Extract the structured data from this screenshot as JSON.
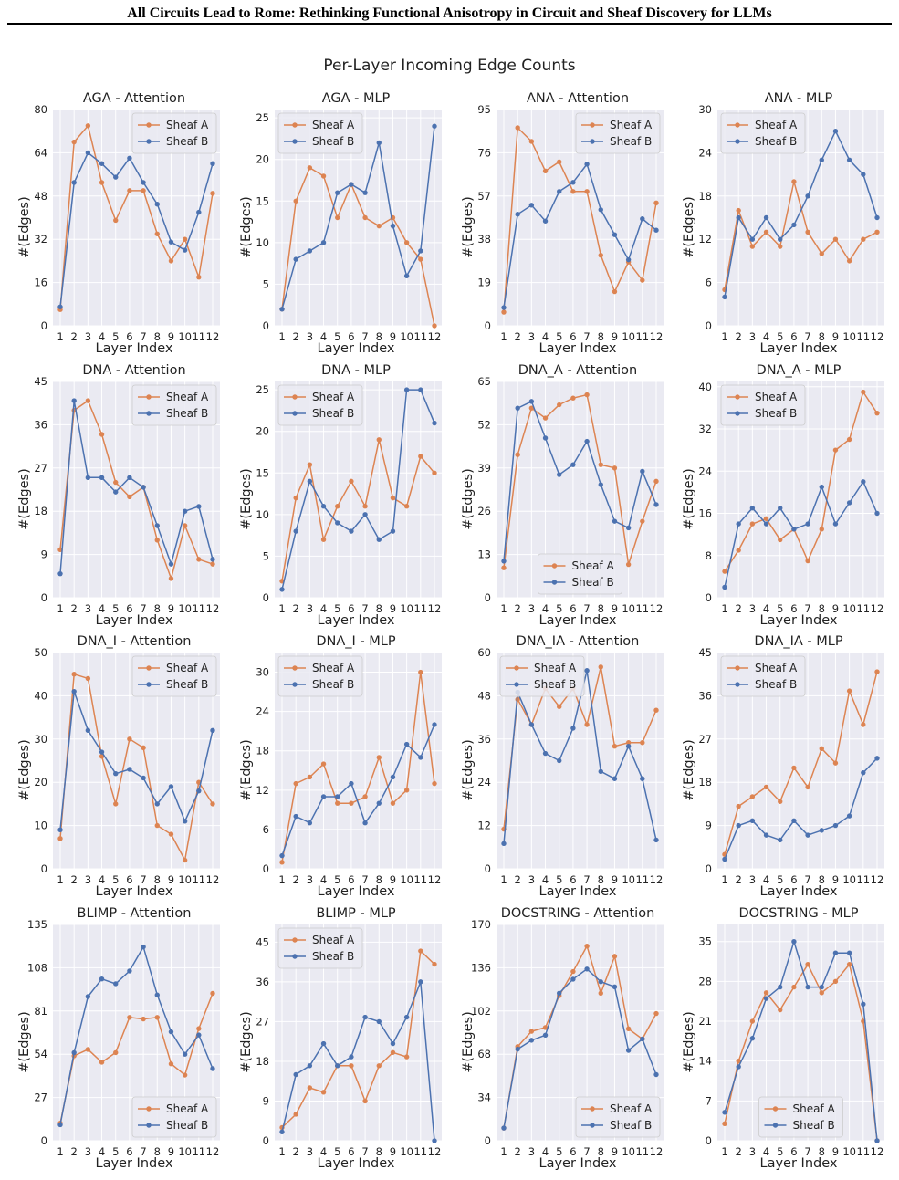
{
  "header": {
    "running_title": "All Circuits Lead to Rome: Rethinking Functional Anisotropy in Circuit and Sheaf Discovery for LLMs"
  },
  "figure": {
    "title": "Per-Layer Incoming Edge Counts"
  },
  "colors": {
    "sheaf_a": "#dd8452",
    "sheaf_b": "#4c72b0",
    "plot_bg": "#eaeaf2",
    "grid": "#ffffff"
  },
  "chart_data": [
    {
      "type": "line",
      "title": "AGA - Attention",
      "xlabel": "Layer Index",
      "ylabel": "#(Edges)",
      "x": [
        1,
        2,
        3,
        4,
        5,
        6,
        7,
        8,
        9,
        10,
        11,
        12
      ],
      "ylim": [
        0,
        80
      ],
      "yticks": [
        0,
        16,
        32,
        48,
        64,
        80
      ],
      "legend": "top-right",
      "series": [
        {
          "name": "Sheaf A",
          "values": [
            6,
            68,
            74,
            53,
            39,
            50,
            50,
            34,
            24,
            32,
            18,
            49
          ]
        },
        {
          "name": "Sheaf B",
          "values": [
            7,
            53,
            64,
            60,
            55,
            62,
            53,
            45,
            31,
            28,
            42,
            60
          ]
        }
      ]
    },
    {
      "type": "line",
      "title": "AGA - MLP",
      "xlabel": "Layer Index",
      "ylabel": "#(Edges)",
      "x": [
        1,
        2,
        3,
        4,
        5,
        6,
        7,
        8,
        9,
        10,
        11,
        12
      ],
      "ylim": [
        0,
        26
      ],
      "yticks": [
        0,
        5,
        10,
        15,
        20,
        25
      ],
      "legend": "top-left",
      "series": [
        {
          "name": "Sheaf A",
          "values": [
            2,
            15,
            19,
            18,
            13,
            17,
            13,
            12,
            13,
            10,
            8,
            0
          ]
        },
        {
          "name": "Sheaf B",
          "values": [
            2,
            8,
            9,
            10,
            16,
            17,
            16,
            22,
            12,
            6,
            9,
            24
          ]
        }
      ]
    },
    {
      "type": "line",
      "title": "ANA - Attention",
      "xlabel": "Layer Index",
      "ylabel": "#(Edges)",
      "x": [
        1,
        2,
        3,
        4,
        5,
        6,
        7,
        8,
        9,
        10,
        11,
        12
      ],
      "ylim": [
        0,
        95
      ],
      "yticks": [
        0,
        19,
        38,
        57,
        76,
        95
      ],
      "legend": "top-right",
      "series": [
        {
          "name": "Sheaf A",
          "values": [
            6,
            87,
            81,
            68,
            72,
            59,
            59,
            31,
            15,
            28,
            20,
            54
          ]
        },
        {
          "name": "Sheaf B",
          "values": [
            8,
            49,
            53,
            46,
            59,
            63,
            71,
            51,
            40,
            29,
            47,
            42
          ]
        }
      ]
    },
    {
      "type": "line",
      "title": "ANA - MLP",
      "xlabel": "Layer Index",
      "ylabel": "#(Edges)",
      "x": [
        1,
        2,
        3,
        4,
        5,
        6,
        7,
        8,
        9,
        10,
        11,
        12
      ],
      "ylim": [
        0,
        30
      ],
      "yticks": [
        0,
        6,
        12,
        18,
        24,
        30
      ],
      "legend": "top-left",
      "series": [
        {
          "name": "Sheaf A",
          "values": [
            5,
            16,
            11,
            13,
            11,
            20,
            13,
            10,
            12,
            9,
            12,
            13
          ]
        },
        {
          "name": "Sheaf B",
          "values": [
            4,
            15,
            12,
            15,
            12,
            14,
            18,
            23,
            27,
            23,
            21,
            15
          ]
        }
      ]
    },
    {
      "type": "line",
      "title": "DNA - Attention",
      "xlabel": "Layer Index",
      "ylabel": "#(Edges)",
      "x": [
        1,
        2,
        3,
        4,
        5,
        6,
        7,
        8,
        9,
        10,
        11,
        12
      ],
      "ylim": [
        0,
        45
      ],
      "yticks": [
        0,
        9,
        18,
        27,
        36,
        45
      ],
      "legend": "top-right",
      "series": [
        {
          "name": "Sheaf A",
          "values": [
            10,
            39,
            41,
            34,
            24,
            21,
            23,
            12,
            4,
            15,
            8,
            7
          ]
        },
        {
          "name": "Sheaf B",
          "values": [
            5,
            41,
            25,
            25,
            22,
            25,
            23,
            15,
            7,
            18,
            19,
            8
          ]
        }
      ]
    },
    {
      "type": "line",
      "title": "DNA - MLP",
      "xlabel": "Layer Index",
      "ylabel": "#(Edges)",
      "x": [
        1,
        2,
        3,
        4,
        5,
        6,
        7,
        8,
        9,
        10,
        11,
        12
      ],
      "ylim": [
        0,
        26
      ],
      "yticks": [
        0,
        5,
        10,
        15,
        20,
        25
      ],
      "legend": "top-left",
      "series": [
        {
          "name": "Sheaf A",
          "values": [
            2,
            12,
            16,
            7,
            11,
            14,
            11,
            19,
            12,
            11,
            17,
            15
          ]
        },
        {
          "name": "Sheaf B",
          "values": [
            1,
            8,
            14,
            11,
            9,
            8,
            10,
            7,
            8,
            25,
            25,
            21
          ]
        }
      ]
    },
    {
      "type": "line",
      "title": "DNA_A - Attention",
      "xlabel": "Layer Index",
      "ylabel": "#(Edges)",
      "x": [
        1,
        2,
        3,
        4,
        5,
        6,
        7,
        8,
        9,
        10,
        11,
        12
      ],
      "ylim": [
        0,
        65
      ],
      "yticks": [
        0,
        13,
        26,
        39,
        52,
        65
      ],
      "legend": "bottom-center",
      "series": [
        {
          "name": "Sheaf A",
          "values": [
            9,
            43,
            57,
            54,
            58,
            60,
            61,
            40,
            39,
            10,
            23,
            35
          ]
        },
        {
          "name": "Sheaf B",
          "values": [
            11,
            57,
            59,
            48,
            37,
            40,
            47,
            34,
            23,
            21,
            38,
            28
          ]
        }
      ]
    },
    {
      "type": "line",
      "title": "DNA_A - MLP",
      "xlabel": "Layer Index",
      "ylabel": "#(Edges)",
      "x": [
        1,
        2,
        3,
        4,
        5,
        6,
        7,
        8,
        9,
        10,
        11,
        12
      ],
      "ylim": [
        0,
        41
      ],
      "yticks": [
        0,
        8,
        16,
        24,
        32,
        40
      ],
      "legend": "top-left",
      "series": [
        {
          "name": "Sheaf A",
          "values": [
            5,
            9,
            14,
            15,
            11,
            13,
            7,
            13,
            28,
            30,
            39,
            35
          ]
        },
        {
          "name": "Sheaf B",
          "values": [
            2,
            14,
            17,
            14,
            17,
            13,
            14,
            21,
            14,
            18,
            22,
            16
          ]
        }
      ]
    },
    {
      "type": "line",
      "title": "DNA_I - Attention",
      "xlabel": "Layer Index",
      "ylabel": "#(Edges)",
      "x": [
        1,
        2,
        3,
        4,
        5,
        6,
        7,
        8,
        9,
        10,
        11,
        12
      ],
      "ylim": [
        0,
        50
      ],
      "yticks": [
        0,
        10,
        20,
        30,
        40,
        50
      ],
      "legend": "top-right",
      "series": [
        {
          "name": "Sheaf A",
          "values": [
            7,
            45,
            44,
            26,
            15,
            30,
            28,
            10,
            8,
            2,
            20,
            15
          ]
        },
        {
          "name": "Sheaf B",
          "values": [
            9,
            41,
            32,
            27,
            22,
            23,
            21,
            15,
            19,
            11,
            18,
            32
          ]
        }
      ]
    },
    {
      "type": "line",
      "title": "DNA_I - MLP",
      "xlabel": "Layer Index",
      "ylabel": "#(Edges)",
      "x": [
        1,
        2,
        3,
        4,
        5,
        6,
        7,
        8,
        9,
        10,
        11,
        12
      ],
      "ylim": [
        0,
        33
      ],
      "yticks": [
        0,
        6,
        12,
        18,
        24,
        30
      ],
      "legend": "top-left",
      "series": [
        {
          "name": "Sheaf A",
          "values": [
            1,
            13,
            14,
            16,
            10,
            10,
            11,
            17,
            10,
            12,
            30,
            13
          ]
        },
        {
          "name": "Sheaf B",
          "values": [
            2,
            8,
            7,
            11,
            11,
            13,
            7,
            10,
            14,
            19,
            17,
            22
          ]
        }
      ]
    },
    {
      "type": "line",
      "title": "DNA_IA - Attention",
      "xlabel": "Layer Index",
      "ylabel": "#(Edges)",
      "x": [
        1,
        2,
        3,
        4,
        5,
        6,
        7,
        8,
        9,
        10,
        11,
        12
      ],
      "ylim": [
        0,
        60
      ],
      "yticks": [
        0,
        12,
        24,
        36,
        48,
        60
      ],
      "legend": "top-left",
      "series": [
        {
          "name": "Sheaf A",
          "values": [
            11,
            47,
            40,
            50,
            45,
            50,
            40,
            56,
            34,
            35,
            35,
            44
          ]
        },
        {
          "name": "Sheaf B",
          "values": [
            7,
            49,
            40,
            32,
            30,
            39,
            55,
            27,
            25,
            34,
            25,
            8
          ]
        }
      ]
    },
    {
      "type": "line",
      "title": "DNA_IA - MLP",
      "xlabel": "Layer Index",
      "ylabel": "#(Edges)",
      "x": [
        1,
        2,
        3,
        4,
        5,
        6,
        7,
        8,
        9,
        10,
        11,
        12
      ],
      "ylim": [
        0,
        45
      ],
      "yticks": [
        0,
        9,
        18,
        27,
        36,
        45
      ],
      "legend": "top-left",
      "series": [
        {
          "name": "Sheaf A",
          "values": [
            3,
            13,
            15,
            17,
            14,
            21,
            17,
            25,
            22,
            37,
            30,
            41
          ]
        },
        {
          "name": "Sheaf B",
          "values": [
            2,
            9,
            10,
            7,
            6,
            10,
            7,
            8,
            9,
            11,
            20,
            23
          ]
        }
      ]
    },
    {
      "type": "line",
      "title": "BLIMP - Attention",
      "xlabel": "Layer Index",
      "ylabel": "#(Edges)",
      "x": [
        1,
        2,
        3,
        4,
        5,
        6,
        7,
        8,
        9,
        10,
        11,
        12
      ],
      "ylim": [
        0,
        135
      ],
      "yticks": [
        0,
        27,
        54,
        81,
        108,
        135
      ],
      "legend": "bottom-right",
      "series": [
        {
          "name": "Sheaf A",
          "values": [
            11,
            53,
            57,
            49,
            55,
            77,
            76,
            77,
            48,
            41,
            70,
            92
          ]
        },
        {
          "name": "Sheaf B",
          "values": [
            10,
            55,
            90,
            101,
            98,
            106,
            121,
            91,
            68,
            54,
            66,
            45
          ]
        }
      ]
    },
    {
      "type": "line",
      "title": "BLIMP - MLP",
      "xlabel": "Layer Index",
      "ylabel": "#(Edges)",
      "x": [
        1,
        2,
        3,
        4,
        5,
        6,
        7,
        8,
        9,
        10,
        11,
        12
      ],
      "ylim": [
        0,
        49
      ],
      "yticks": [
        0,
        9,
        18,
        27,
        36,
        45
      ],
      "legend": "top-left",
      "series": [
        {
          "name": "Sheaf A",
          "values": [
            3,
            6,
            12,
            11,
            17,
            17,
            9,
            17,
            20,
            19,
            43,
            40
          ]
        },
        {
          "name": "Sheaf B",
          "values": [
            2,
            15,
            17,
            22,
            17,
            19,
            28,
            27,
            22,
            28,
            36,
            0
          ]
        }
      ]
    },
    {
      "type": "line",
      "title": "DOCSTRING - Attention",
      "xlabel": "Layer Index",
      "ylabel": "#(Edges)",
      "x": [
        1,
        2,
        3,
        4,
        5,
        6,
        7,
        8,
        9,
        10,
        11,
        12
      ],
      "ylim": [
        0,
        170
      ],
      "yticks": [
        0,
        34,
        68,
        102,
        136,
        170
      ],
      "legend": "bottom-right",
      "series": [
        {
          "name": "Sheaf A",
          "values": [
            10,
            74,
            86,
            89,
            114,
            133,
            153,
            116,
            145,
            88,
            80,
            100
          ]
        },
        {
          "name": "Sheaf B",
          "values": [
            10,
            72,
            79,
            83,
            116,
            127,
            135,
            125,
            121,
            71,
            80,
            52
          ]
        }
      ]
    },
    {
      "type": "line",
      "title": "DOCSTRING - MLP",
      "xlabel": "Layer Index",
      "ylabel": "#(Edges)",
      "x": [
        1,
        2,
        3,
        4,
        5,
        6,
        7,
        8,
        9,
        10,
        11,
        12
      ],
      "ylim": [
        0,
        38
      ],
      "yticks": [
        0,
        7,
        14,
        21,
        28,
        35
      ],
      "legend": "bottom-center",
      "series": [
        {
          "name": "Sheaf A",
          "values": [
            3,
            14,
            21,
            26,
            23,
            27,
            31,
            26,
            28,
            31,
            21,
            0
          ]
        },
        {
          "name": "Sheaf B",
          "values": [
            5,
            13,
            18,
            25,
            27,
            35,
            27,
            27,
            33,
            33,
            24,
            0
          ]
        }
      ]
    }
  ]
}
